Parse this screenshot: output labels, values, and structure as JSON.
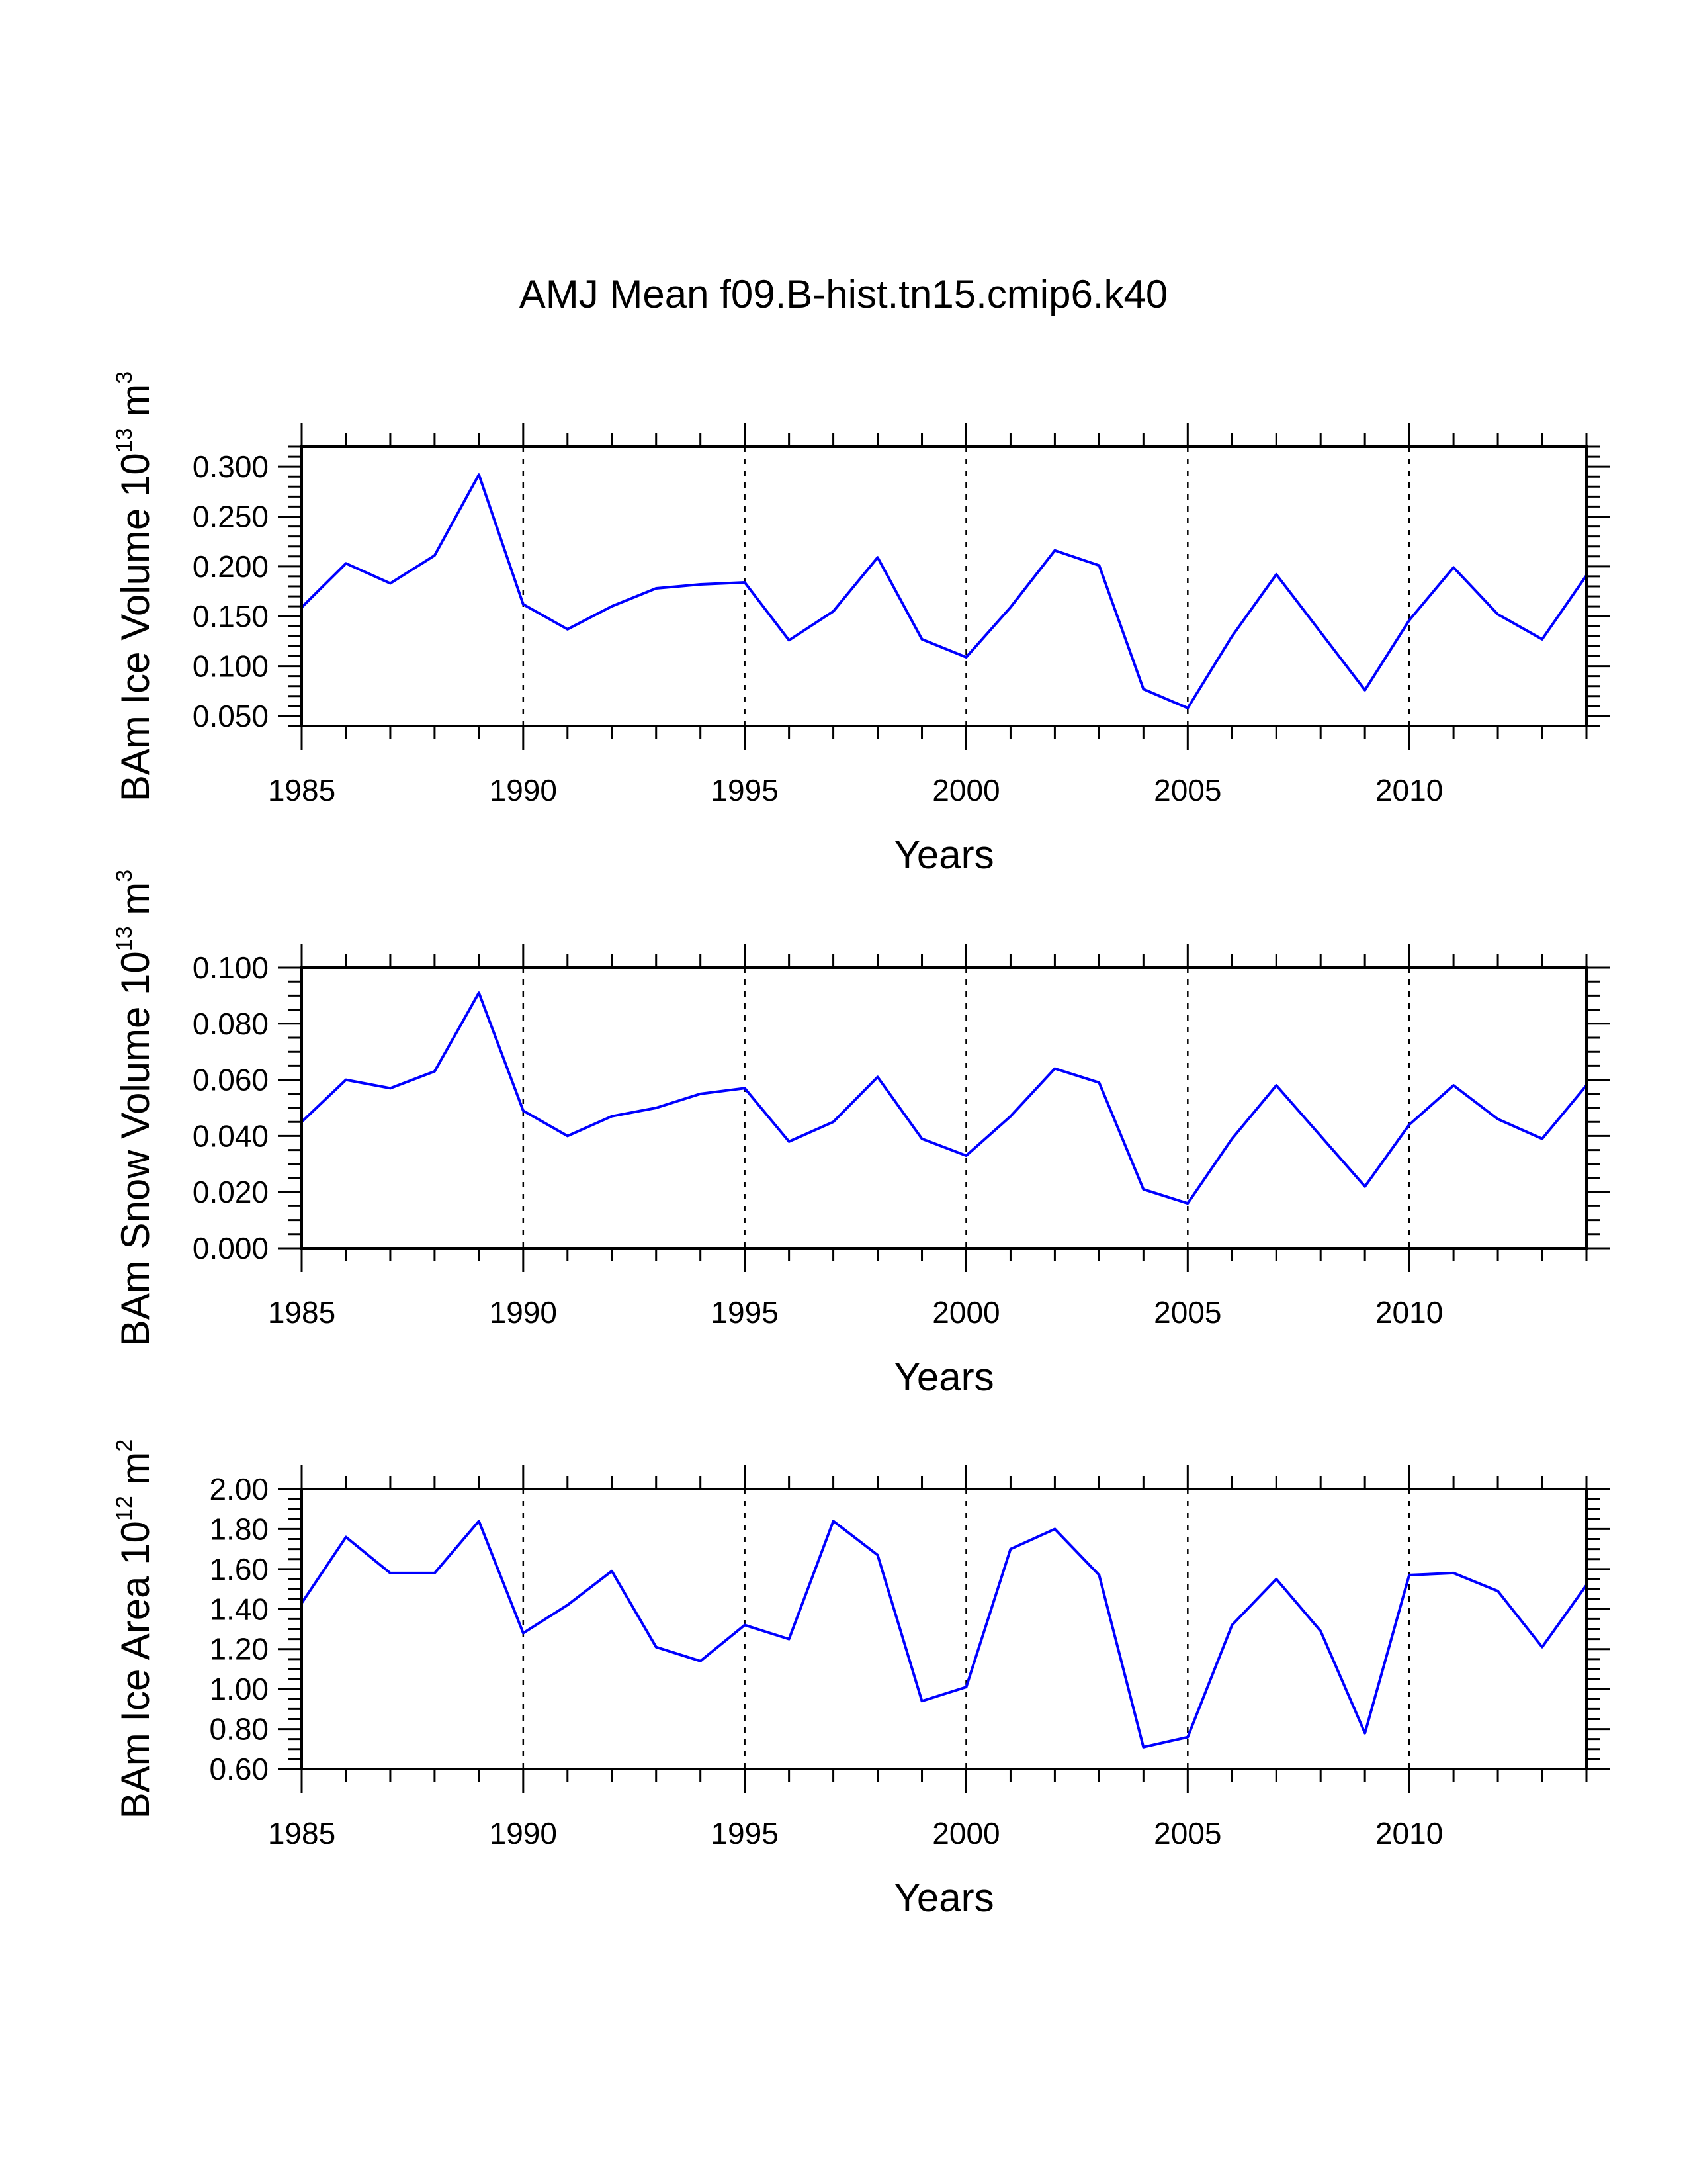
{
  "chart_data": [
    {
      "type": "line",
      "title": "AMJ Mean f09.B-hist.tn15.cmip6.k40",
      "xlabel": "Years",
      "ylabel": {
        "text": "BAm Ice Volume 10",
        "exp1": "13",
        "unit": " m",
        "exp2": "3"
      },
      "xlim": [
        1985,
        2014
      ],
      "ylim": [
        0.04,
        0.32
      ],
      "xticks": [
        "1985",
        "1990",
        "1995",
        "2000",
        "2005",
        "2010"
      ],
      "yticks": [
        "0.050",
        "0.100",
        "0.150",
        "0.200",
        "0.250",
        "0.300"
      ],
      "grid": "dashed vertical at major x ticks",
      "series": [
        {
          "name": "BAm Ice Volume",
          "color": "#0000ff",
          "x": [
            1985,
            1986,
            1987,
            1988,
            1989,
            1990,
            1991,
            1992,
            1993,
            1994,
            1995,
            1996,
            1997,
            1998,
            1999,
            2000,
            2001,
            2002,
            2003,
            2004,
            2005,
            2006,
            2007,
            2008,
            2009,
            2010,
            2011,
            2012,
            2013,
            2014
          ],
          "values": [
            0.159,
            0.203,
            0.183,
            0.211,
            0.292,
            0.162,
            0.137,
            0.16,
            0.178,
            0.182,
            0.184,
            0.126,
            0.155,
            0.209,
            0.127,
            0.109,
            0.159,
            0.216,
            0.201,
            0.077,
            0.058,
            0.13,
            0.192,
            0.134,
            0.076,
            0.146,
            0.199,
            0.152,
            0.127,
            0.191
          ]
        }
      ]
    },
    {
      "type": "line",
      "xlabel": "Years",
      "ylabel": {
        "text": "BAm Snow Volume 10",
        "exp1": "13",
        "unit": " m",
        "exp2": "3"
      },
      "xlim": [
        1985,
        2014
      ],
      "ylim": [
        0.0,
        0.1
      ],
      "xticks": [
        "1985",
        "1990",
        "1995",
        "2000",
        "2005",
        "2010"
      ],
      "yticks": [
        "0.000",
        "0.020",
        "0.040",
        "0.060",
        "0.080",
        "0.100"
      ],
      "grid": "dashed vertical at major x ticks",
      "series": [
        {
          "name": "BAm Snow Volume",
          "color": "#0000ff",
          "x": [
            1985,
            1986,
            1987,
            1988,
            1989,
            1990,
            1991,
            1992,
            1993,
            1994,
            1995,
            1996,
            1997,
            1998,
            1999,
            2000,
            2001,
            2002,
            2003,
            2004,
            2005,
            2006,
            2007,
            2008,
            2009,
            2010,
            2011,
            2012,
            2013,
            2014
          ],
          "values": [
            0.045,
            0.06,
            0.057,
            0.063,
            0.091,
            0.049,
            0.04,
            0.047,
            0.05,
            0.055,
            0.057,
            0.038,
            0.045,
            0.061,
            0.039,
            0.033,
            0.047,
            0.064,
            0.059,
            0.021,
            0.016,
            0.039,
            0.058,
            0.04,
            0.022,
            0.044,
            0.058,
            0.046,
            0.039,
            0.058
          ]
        }
      ]
    },
    {
      "type": "line",
      "xlabel": "Years",
      "ylabel": {
        "text": "BAm Ice Area 10",
        "exp1": "12",
        "unit": " m",
        "exp2": "2"
      },
      "xlim": [
        1985,
        2014
      ],
      "ylim": [
        0.6,
        2.0
      ],
      "xticks": [
        "1985",
        "1990",
        "1995",
        "2000",
        "2005",
        "2010"
      ],
      "yticks": [
        "0.60",
        "0.80",
        "1.00",
        "1.20",
        "1.40",
        "1.60",
        "1.80",
        "2.00"
      ],
      "grid": "dashed vertical at major x ticks",
      "series": [
        {
          "name": "BAm Ice Area",
          "color": "#0000ff",
          "x": [
            1985,
            1986,
            1987,
            1988,
            1989,
            1990,
            1991,
            1992,
            1993,
            1994,
            1995,
            1996,
            1997,
            1998,
            1999,
            2000,
            2001,
            2002,
            2003,
            2004,
            2005,
            2006,
            2007,
            2008,
            2009,
            2010,
            2011,
            2012,
            2013,
            2014
          ],
          "values": [
            1.43,
            1.76,
            1.58,
            1.58,
            1.84,
            1.28,
            1.42,
            1.59,
            1.21,
            1.14,
            1.32,
            1.25,
            1.84,
            1.67,
            0.94,
            1.01,
            1.7,
            1.8,
            1.57,
            0.71,
            0.76,
            1.32,
            1.55,
            1.29,
            0.78,
            1.57,
            1.58,
            1.49,
            1.21,
            1.52
          ]
        }
      ]
    }
  ]
}
